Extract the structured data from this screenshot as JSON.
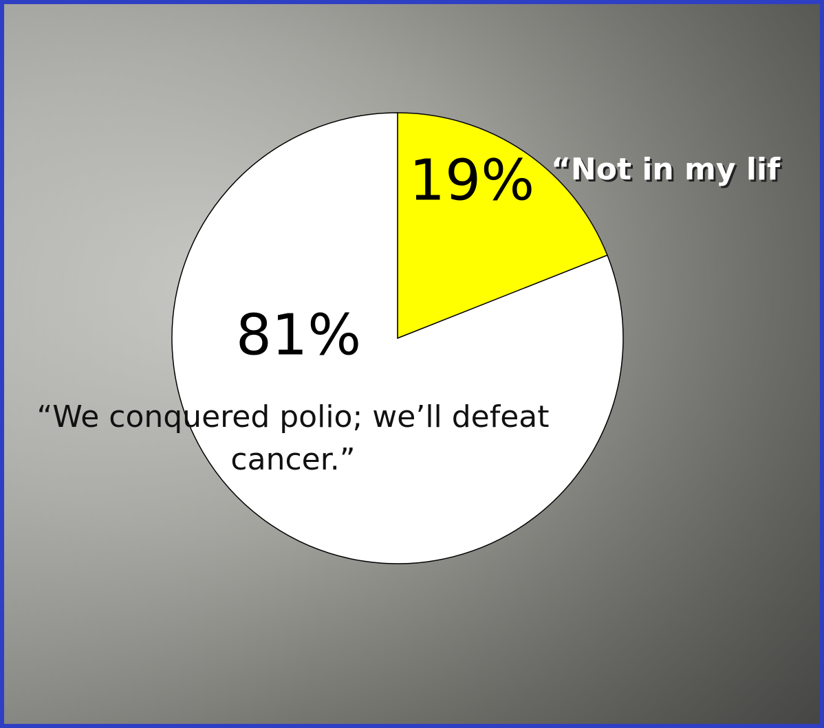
{
  "chart_data": {
    "type": "pie",
    "categories": [
      "“Not in my lif",
      "“We conquered polio; we’ll defeat cancer.”"
    ],
    "values": [
      19,
      81
    ],
    "value_labels": [
      "19%",
      "81%"
    ],
    "colors": [
      "#ffff00",
      "#ffffff"
    ]
  }
}
